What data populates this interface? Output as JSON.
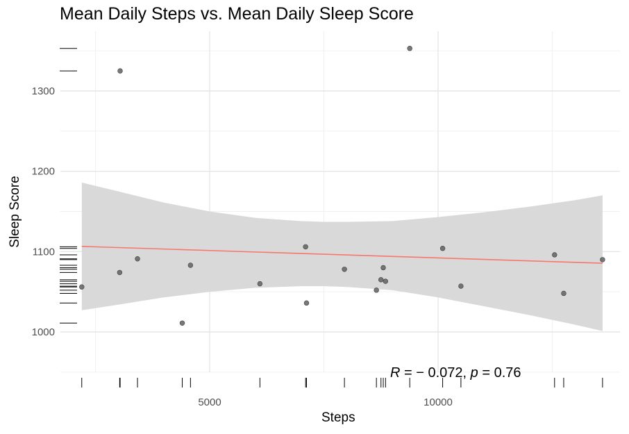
{
  "chart_data": {
    "type": "scatter",
    "title": "Mean Daily Steps vs. Mean Daily Sleep Score",
    "xlabel": "Steps",
    "ylabel": "Sleep Score",
    "xlim": [
      2150,
      14150
    ],
    "ylim": [
      950,
      1370
    ],
    "x_ticks": [
      5000,
      10000
    ],
    "y_ticks": [
      1000,
      1100,
      1200,
      1300
    ],
    "grid": true,
    "points": [
      {
        "x": 2200,
        "y": 1056
      },
      {
        "x": 3030,
        "y": 1074
      },
      {
        "x": 3040,
        "y": 1325
      },
      {
        "x": 3420,
        "y": 1091
      },
      {
        "x": 4400,
        "y": 1011
      },
      {
        "x": 4580,
        "y": 1083
      },
      {
        "x": 6100,
        "y": 1060
      },
      {
        "x": 7100,
        "y": 1106
      },
      {
        "x": 7120,
        "y": 1036
      },
      {
        "x": 7950,
        "y": 1078
      },
      {
        "x": 8650,
        "y": 1052
      },
      {
        "x": 8750,
        "y": 1065
      },
      {
        "x": 8800,
        "y": 1080
      },
      {
        "x": 8850,
        "y": 1063
      },
      {
        "x": 9380,
        "y": 1353
      },
      {
        "x": 10100,
        "y": 1104
      },
      {
        "x": 10500,
        "y": 1057
      },
      {
        "x": 12550,
        "y": 1096
      },
      {
        "x": 12750,
        "y": 1048
      },
      {
        "x": 13600,
        "y": 1090
      }
    ],
    "fit_line": {
      "x": [
        2200,
        13600
      ],
      "y": [
        1106.5,
        1085.5
      ],
      "color": "#f8766d"
    },
    "confidence_band": {
      "x": [
        2200,
        3000,
        4000,
        5000,
        6000,
        7000,
        7500,
        8000,
        9000,
        10000,
        11000,
        12000,
        13000,
        13600
      ],
      "lower": [
        1027,
        1034,
        1043,
        1050,
        1055,
        1057,
        1057,
        1056,
        1052,
        1043,
        1032,
        1021,
        1009,
        1001
      ],
      "upper": [
        1186,
        1175,
        1161,
        1150,
        1142,
        1138,
        1137,
        1137,
        1138,
        1143,
        1149,
        1156,
        1164,
        1170
      ],
      "fill": "#d9d9d9"
    },
    "annotation": {
      "R": "R",
      "p": "p",
      "text": " = − 0.072, ",
      "p_text": " = 0.76"
    },
    "colors": {
      "points": "#606060",
      "ticks": "#000000"
    }
  }
}
